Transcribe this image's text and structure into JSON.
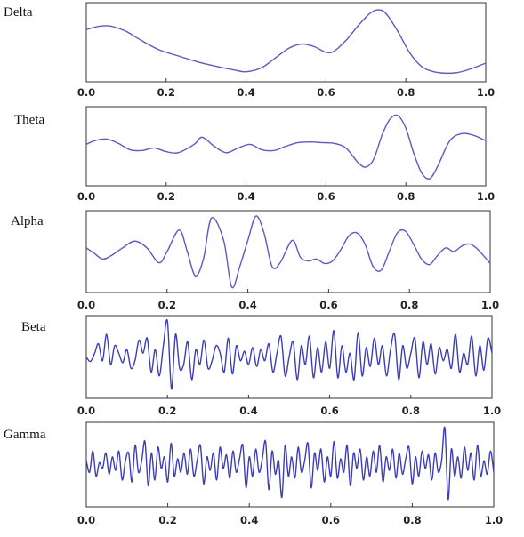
{
  "chart_data": [
    {
      "type": "line",
      "title": "Delta",
      "xlim": [
        0.0,
        1.0
      ],
      "ylim": [
        -1,
        1
      ],
      "x_ticks": [
        "0.0",
        "0.2",
        "0.4",
        "0.6",
        "0.8",
        "1.0"
      ],
      "line_color": "#5b5bbf",
      "series": [
        {
          "x": [
            0.0,
            0.03,
            0.06,
            0.1,
            0.13,
            0.18,
            0.23,
            0.28,
            0.33,
            0.37,
            0.4,
            0.44,
            0.48,
            0.51,
            0.54,
            0.57,
            0.6,
            0.62,
            0.65,
            0.68,
            0.71,
            0.73,
            0.75,
            0.78,
            0.81,
            0.84,
            0.87,
            0.9,
            0.93,
            0.96,
            1.0
          ],
          "values": [
            0.35,
            0.44,
            0.45,
            0.3,
            0.1,
            -0.2,
            -0.38,
            -0.55,
            -0.68,
            -0.77,
            -0.82,
            -0.7,
            -0.38,
            -0.15,
            -0.05,
            -0.12,
            -0.28,
            -0.25,
            0.05,
            0.45,
            0.8,
            0.9,
            0.8,
            0.3,
            -0.3,
            -0.68,
            -0.82,
            -0.86,
            -0.84,
            -0.75,
            -0.58
          ]
        }
      ]
    },
    {
      "type": "line",
      "title": "Theta",
      "xlim": [
        0.0,
        1.0
      ],
      "ylim": [
        -1,
        1
      ],
      "x_ticks": [
        "0.0",
        "0.2",
        "0.4",
        "0.6",
        "0.8",
        "1.0"
      ],
      "line_color": "#5b5bbf",
      "series": [
        {
          "x": [
            0.0,
            0.02,
            0.05,
            0.08,
            0.11,
            0.14,
            0.17,
            0.2,
            0.23,
            0.27,
            0.29,
            0.32,
            0.35,
            0.38,
            0.41,
            0.44,
            0.47,
            0.5,
            0.53,
            0.56,
            0.59,
            0.62,
            0.65,
            0.68,
            0.7,
            0.72,
            0.74,
            0.76,
            0.78,
            0.8,
            0.82,
            0.84,
            0.86,
            0.88,
            0.91,
            0.94,
            0.97,
            1.0
          ],
          "values": [
            0.05,
            0.15,
            0.2,
            0.08,
            -0.1,
            -0.12,
            -0.05,
            -0.15,
            -0.18,
            0.05,
            0.25,
            0.0,
            -0.18,
            -0.05,
            0.05,
            -0.1,
            -0.12,
            0.0,
            0.1,
            0.12,
            0.1,
            0.08,
            -0.05,
            -0.45,
            -0.58,
            -0.35,
            0.3,
            0.75,
            0.85,
            0.5,
            -0.2,
            -0.75,
            -0.9,
            -0.55,
            0.15,
            0.35,
            0.3,
            0.15
          ]
        }
      ]
    },
    {
      "type": "line",
      "title": "Alpha",
      "xlim": [
        0.0,
        1.0
      ],
      "ylim": [
        -1,
        1
      ],
      "x_ticks": [
        "0.0",
        "0.2",
        "0.4",
        "0.6",
        "0.8",
        "1.0"
      ],
      "line_color": "#5b5bbf",
      "series": [
        {
          "x": [
            0.0,
            0.02,
            0.04,
            0.06,
            0.09,
            0.12,
            0.15,
            0.18,
            0.2,
            0.23,
            0.25,
            0.27,
            0.29,
            0.31,
            0.34,
            0.36,
            0.38,
            0.4,
            0.42,
            0.44,
            0.46,
            0.48,
            0.51,
            0.53,
            0.55,
            0.57,
            0.59,
            0.61,
            0.63,
            0.65,
            0.67,
            0.69,
            0.71,
            0.73,
            0.75,
            0.77,
            0.79,
            0.81,
            0.83,
            0.85,
            0.87,
            0.89,
            0.91,
            0.93,
            0.95,
            0.97,
            1.0
          ],
          "values": [
            0.1,
            -0.05,
            -0.2,
            -0.12,
            0.1,
            0.28,
            0.1,
            -0.3,
            0.0,
            0.58,
            0.0,
            -0.65,
            -0.2,
            0.9,
            0.3,
            -0.95,
            -0.4,
            0.3,
            0.95,
            0.5,
            -0.4,
            -0.3,
            0.3,
            -0.15,
            -0.25,
            -0.2,
            -0.32,
            -0.25,
            0.05,
            0.42,
            0.5,
            0.2,
            -0.4,
            -0.5,
            0.0,
            0.5,
            0.55,
            0.2,
            -0.2,
            -0.35,
            -0.1,
            0.1,
            0.0,
            0.15,
            0.2,
            0.05,
            -0.32
          ]
        }
      ]
    },
    {
      "type": "line",
      "title": "Beta",
      "xlim": [
        0.0,
        1.0
      ],
      "ylim": [
        -1,
        1
      ],
      "x_ticks": [
        "0.0",
        "0.2",
        "0.4",
        "0.6",
        "0.8",
        "1.0"
      ],
      "line_color": "#3c3cb8",
      "series": [
        {
          "x": [
            0.0,
            0.01,
            0.02,
            0.03,
            0.04,
            0.05,
            0.06,
            0.07,
            0.08,
            0.09,
            0.1,
            0.11,
            0.12,
            0.13,
            0.14,
            0.15,
            0.16,
            0.17,
            0.18,
            0.19,
            0.2,
            0.21,
            0.22,
            0.23,
            0.24,
            0.25,
            0.26,
            0.27,
            0.28,
            0.29,
            0.3,
            0.31,
            0.32,
            0.33,
            0.34,
            0.35,
            0.36,
            0.37,
            0.38,
            0.39,
            0.4,
            0.41,
            0.42,
            0.43,
            0.44,
            0.45,
            0.46,
            0.47,
            0.48,
            0.49,
            0.5,
            0.51,
            0.52,
            0.53,
            0.54,
            0.55,
            0.56,
            0.57,
            0.58,
            0.59,
            0.6,
            0.61,
            0.62,
            0.63,
            0.64,
            0.65,
            0.66,
            0.67,
            0.68,
            0.69,
            0.7,
            0.71,
            0.72,
            0.73,
            0.74,
            0.75,
            0.76,
            0.77,
            0.78,
            0.79,
            0.8,
            0.81,
            0.82,
            0.83,
            0.84,
            0.85,
            0.86,
            0.87,
            0.88,
            0.89,
            0.9,
            0.91,
            0.92,
            0.93,
            0.94,
            0.95,
            0.96,
            0.97,
            0.98,
            0.99,
            1.0
          ],
          "values": [
            0.0,
            -0.12,
            0.08,
            0.35,
            -0.1,
            0.6,
            -0.2,
            0.3,
            0.1,
            -0.15,
            0.2,
            -0.3,
            -0.1,
            0.45,
            0.1,
            0.5,
            -0.4,
            0.2,
            -0.5,
            0.3,
            0.95,
            -0.85,
            0.6,
            -0.3,
            -0.2,
            0.4,
            -0.6,
            0.2,
            -0.2,
            0.45,
            -0.3,
            -0.1,
            0.3,
            0.1,
            -0.4,
            0.5,
            -0.45,
            0.3,
            -0.1,
            0.15,
            -0.2,
            0.25,
            -0.25,
            0.2,
            -0.1,
            0.35,
            -0.4,
            0.1,
            0.55,
            -0.5,
            0.0,
            0.4,
            -0.6,
            0.3,
            -0.2,
            0.55,
            -0.55,
            0.25,
            -0.4,
            0.4,
            -0.3,
            0.7,
            -0.55,
            0.3,
            -0.4,
            0.1,
            -0.6,
            0.65,
            -0.5,
            0.25,
            -0.25,
            0.5,
            -0.2,
            0.3,
            -0.5,
            0.2,
            0.6,
            -0.6,
            0.3,
            -0.3,
            0.1,
            0.5,
            -0.55,
            0.4,
            -0.2,
            0.35,
            -0.45,
            0.25,
            -0.1,
            0.2,
            -0.3,
            0.6,
            -0.4,
            0.1,
            -0.2,
            0.55,
            -0.5,
            0.3,
            -0.35,
            0.5,
            0.1
          ]
        }
      ]
    },
    {
      "type": "line",
      "title": "Gamma",
      "xlim": [
        0.0,
        1.0
      ],
      "ylim": [
        -1,
        1
      ],
      "x_ticks": [
        "0.0",
        "0.2",
        "0.4",
        "0.6",
        "0.8",
        "1.0"
      ],
      "line_color": "#3c3cb8",
      "series": [
        {
          "x": [
            0.0,
            0.008,
            0.016,
            0.024,
            0.032,
            0.04,
            0.048,
            0.056,
            0.064,
            0.072,
            0.08,
            0.088,
            0.096,
            0.104,
            0.112,
            0.12,
            0.128,
            0.136,
            0.144,
            0.152,
            0.16,
            0.168,
            0.176,
            0.184,
            0.192,
            0.2,
            0.208,
            0.216,
            0.224,
            0.232,
            0.24,
            0.248,
            0.256,
            0.264,
            0.272,
            0.28,
            0.288,
            0.296,
            0.304,
            0.312,
            0.32,
            0.328,
            0.336,
            0.344,
            0.352,
            0.36,
            0.368,
            0.376,
            0.384,
            0.392,
            0.4,
            0.408,
            0.416,
            0.424,
            0.432,
            0.44,
            0.448,
            0.456,
            0.464,
            0.472,
            0.48,
            0.488,
            0.496,
            0.504,
            0.512,
            0.52,
            0.528,
            0.536,
            0.544,
            0.552,
            0.56,
            0.568,
            0.576,
            0.584,
            0.592,
            0.6,
            0.608,
            0.616,
            0.624,
            0.632,
            0.64,
            0.648,
            0.656,
            0.664,
            0.672,
            0.68,
            0.688,
            0.696,
            0.704,
            0.712,
            0.72,
            0.728,
            0.736,
            0.744,
            0.752,
            0.76,
            0.768,
            0.776,
            0.784,
            0.792,
            0.8,
            0.808,
            0.816,
            0.824,
            0.832,
            0.84,
            0.848,
            0.856,
            0.864,
            0.872,
            0.88,
            0.888,
            0.896,
            0.904,
            0.912,
            0.92,
            0.928,
            0.936,
            0.944,
            0.952,
            0.96,
            0.968,
            0.976,
            0.984,
            0.992,
            1.0
          ],
          "values": [
            0.1,
            -0.2,
            0.35,
            -0.3,
            0.05,
            -0.1,
            0.3,
            -0.25,
            0.2,
            -0.15,
            0.35,
            -0.4,
            0.1,
            0.3,
            -0.45,
            0.5,
            -0.2,
            0.1,
            0.6,
            -0.55,
            0.3,
            -0.4,
            0.45,
            -0.1,
            0.2,
            -0.45,
            0.55,
            -0.3,
            0.15,
            -0.2,
            0.3,
            -0.25,
            0.4,
            -0.3,
            0.1,
            0.5,
            -0.5,
            0.2,
            -0.15,
            0.3,
            -0.4,
            0.45,
            -0.1,
            0.25,
            -0.35,
            0.35,
            -0.2,
            0.15,
            0.5,
            -0.6,
            0.2,
            -0.3,
            0.4,
            -0.2,
            0.15,
            0.6,
            -0.65,
            0.35,
            -0.25,
            0.1,
            -0.85,
            0.5,
            -0.3,
            0.2,
            -0.35,
            0.45,
            -0.2,
            0.1,
            0.55,
            -0.6,
            0.3,
            -0.15,
            0.4,
            -0.45,
            0.2,
            -0.3,
            0.6,
            -0.35,
            0.15,
            -0.2,
            0.5,
            -0.55,
            0.3,
            -0.1,
            0.4,
            -0.4,
            0.2,
            -0.3,
            0.35,
            -0.2,
            0.5,
            -0.45,
            0.2,
            -0.15,
            0.4,
            -0.35,
            0.3,
            -0.25,
            0.15,
            0.45,
            -0.5,
            0.2,
            -0.3,
            0.35,
            -0.1,
            0.25,
            -0.4,
            0.3,
            -0.2,
            0.1,
            0.95,
            -0.9,
            0.4,
            -0.3,
            0.2,
            -0.35,
            0.45,
            -0.15,
            0.3,
            -0.4,
            0.5,
            -0.3,
            0.1,
            -0.25,
            0.35,
            -0.2
          ]
        }
      ]
    }
  ]
}
